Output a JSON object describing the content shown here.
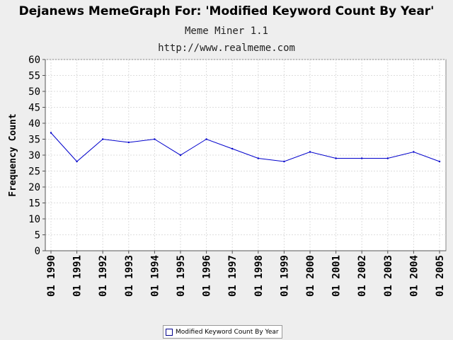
{
  "chart_data": {
    "type": "line",
    "title": "Dejanews MemeGraph For: 'Modified Keyword Count By Year'",
    "subtitles": [
      "Meme Miner 1.1",
      "http://www.realmeme.com"
    ],
    "xlabel": "",
    "ylabel": "Frequency Count",
    "ylim": [
      0,
      60
    ],
    "yticks": [
      0,
      5,
      10,
      15,
      20,
      25,
      30,
      35,
      40,
      45,
      50,
      55,
      60
    ],
    "categories": [
      "01 1990",
      "01 1991",
      "01 1992",
      "01 1993",
      "01 1994",
      "01 1995",
      "01 1996",
      "01 1997",
      "01 1998",
      "01 1999",
      "01 2000",
      "01 2001",
      "01 2002",
      "01 2003",
      "01 2004",
      "01 2005"
    ],
    "series": [
      {
        "name": "Modified Keyword Count By Year",
        "values": [
          37,
          28,
          35,
          34,
          35,
          30,
          35,
          32,
          29,
          28,
          31,
          29,
          29,
          29,
          31,
          28
        ],
        "color": "#0000cc"
      }
    ],
    "grid": true,
    "legend_position": "bottom"
  }
}
